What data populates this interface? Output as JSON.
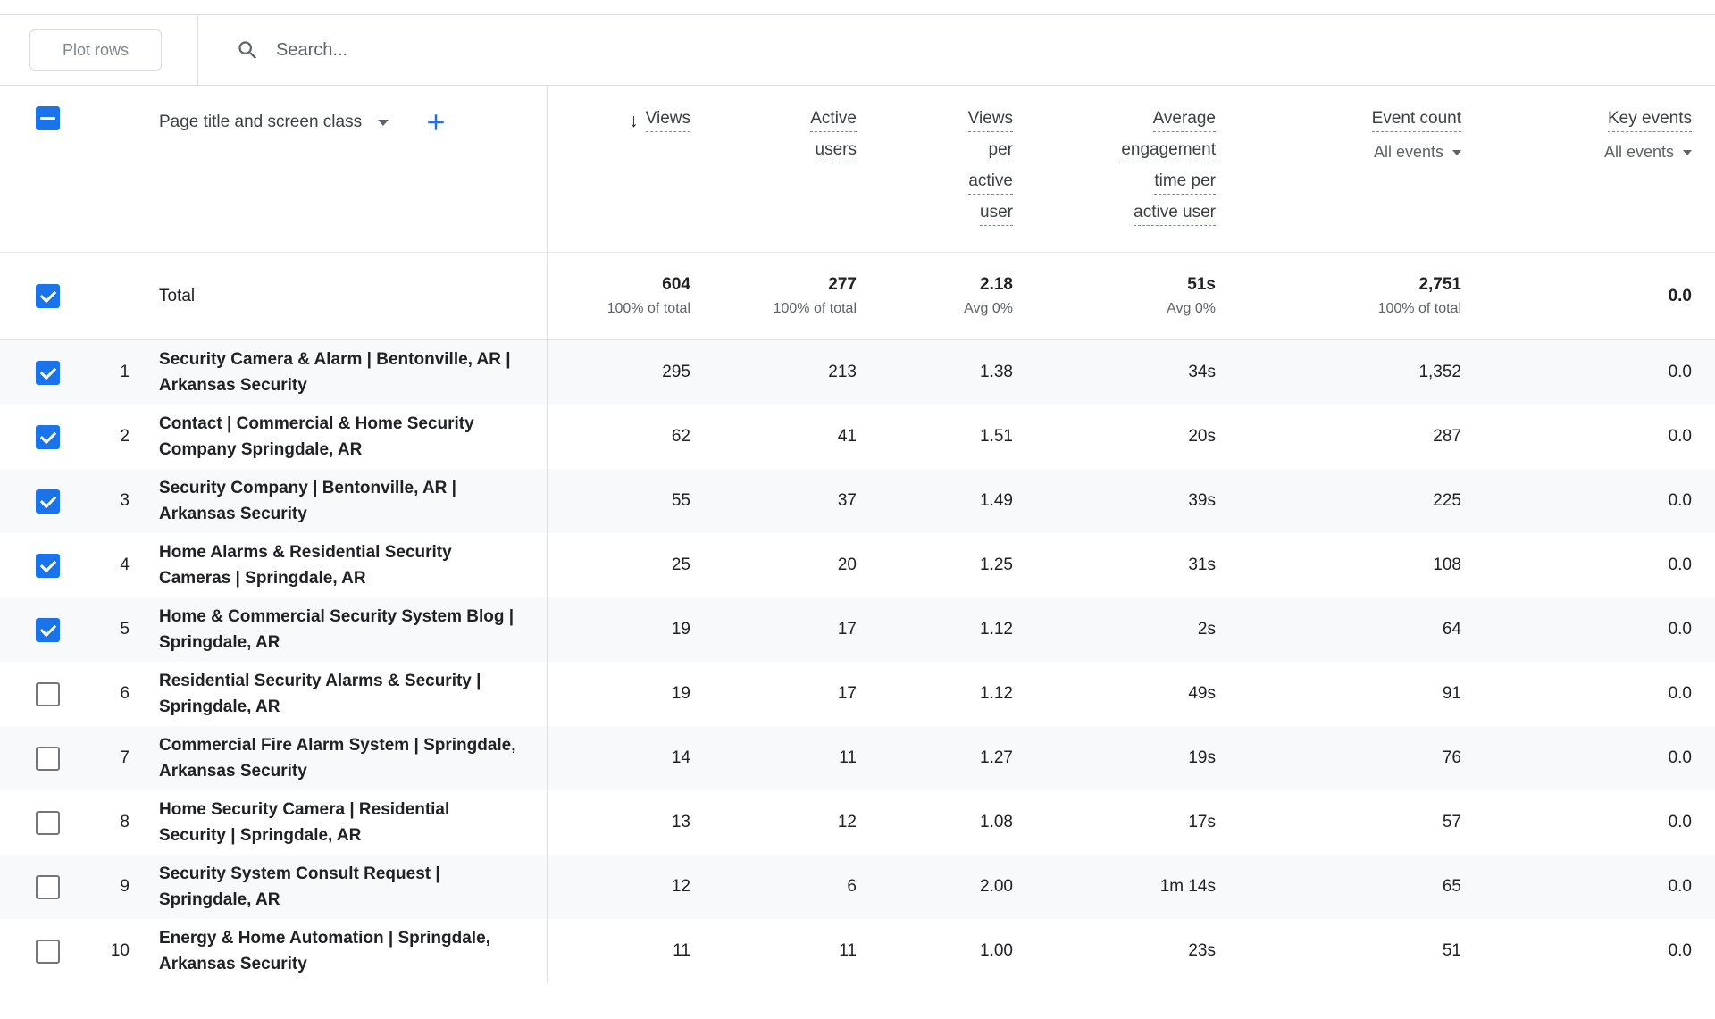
{
  "toolbar": {
    "plot_rows_label": "Plot rows",
    "search_placeholder": "Search..."
  },
  "colors": {
    "accent_blue": "#1a73e8",
    "stripe": "#f8f9fa",
    "gray_text": "#5f6368"
  },
  "table": {
    "dimension_header": "Page title and screen class",
    "total_label": "Total",
    "columns": [
      {
        "id": "views",
        "lines": [
          "Views"
        ],
        "sorted": true
      },
      {
        "id": "active-users",
        "lines": [
          "Active",
          "users"
        ]
      },
      {
        "id": "views-per-active-user",
        "lines": [
          "Views",
          "per",
          "active",
          "user"
        ]
      },
      {
        "id": "average-engagement-time-per-active-user",
        "lines": [
          "Average",
          "engagement",
          "time per",
          "active user"
        ]
      },
      {
        "id": "event-count",
        "lines": [
          "Event count"
        ],
        "filter_label": "All events"
      },
      {
        "id": "key-events",
        "lines": [
          "Key events"
        ],
        "filter_label": "All events"
      }
    ],
    "total": {
      "values": [
        "604",
        "277",
        "2.18",
        "51s",
        "2,751",
        "0.0"
      ],
      "subvalues": [
        "100% of total",
        "100% of total",
        "Avg 0%",
        "Avg 0%",
        "100% of total",
        ""
      ]
    },
    "rows": [
      {
        "num": "1",
        "checked": true,
        "title": "Security Camera & Alarm | Bentonville, AR | Arkansas Security",
        "values": [
          "295",
          "213",
          "1.38",
          "34s",
          "1,352",
          "0.0"
        ]
      },
      {
        "num": "2",
        "checked": true,
        "title": "Contact | Commercial & Home Security Company Springdale, AR",
        "values": [
          "62",
          "41",
          "1.51",
          "20s",
          "287",
          "0.0"
        ]
      },
      {
        "num": "3",
        "checked": true,
        "title": "Security Company | Bentonville, AR | Arkansas Security",
        "values": [
          "55",
          "37",
          "1.49",
          "39s",
          "225",
          "0.0"
        ]
      },
      {
        "num": "4",
        "checked": true,
        "title": "Home Alarms & Residential Security Cameras | Springdale, AR",
        "values": [
          "25",
          "20",
          "1.25",
          "31s",
          "108",
          "0.0"
        ]
      },
      {
        "num": "5",
        "checked": true,
        "title": "Home & Commercial Security System Blog | Springdale, AR",
        "values": [
          "19",
          "17",
          "1.12",
          "2s",
          "64",
          "0.0"
        ]
      },
      {
        "num": "6",
        "checked": false,
        "title": "Residential Security Alarms & Security | Springdale, AR",
        "values": [
          "19",
          "17",
          "1.12",
          "49s",
          "91",
          "0.0"
        ]
      },
      {
        "num": "7",
        "checked": false,
        "title": "Commercial Fire Alarm System | Springdale, Arkansas Security",
        "values": [
          "14",
          "11",
          "1.27",
          "19s",
          "76",
          "0.0"
        ]
      },
      {
        "num": "8",
        "checked": false,
        "title": "Home Security Camera | Residential Security | Springdale, AR",
        "values": [
          "13",
          "12",
          "1.08",
          "17s",
          "57",
          "0.0"
        ]
      },
      {
        "num": "9",
        "checked": false,
        "title": "Security System Consult Request | Springdale, AR",
        "values": [
          "12",
          "6",
          "2.00",
          "1m 14s",
          "65",
          "0.0"
        ]
      },
      {
        "num": "10",
        "checked": false,
        "title": "Energy & Home Automation | Springdale, Arkansas Security",
        "values": [
          "11",
          "11",
          "1.00",
          "23s",
          "51",
          "0.0"
        ]
      }
    ]
  }
}
